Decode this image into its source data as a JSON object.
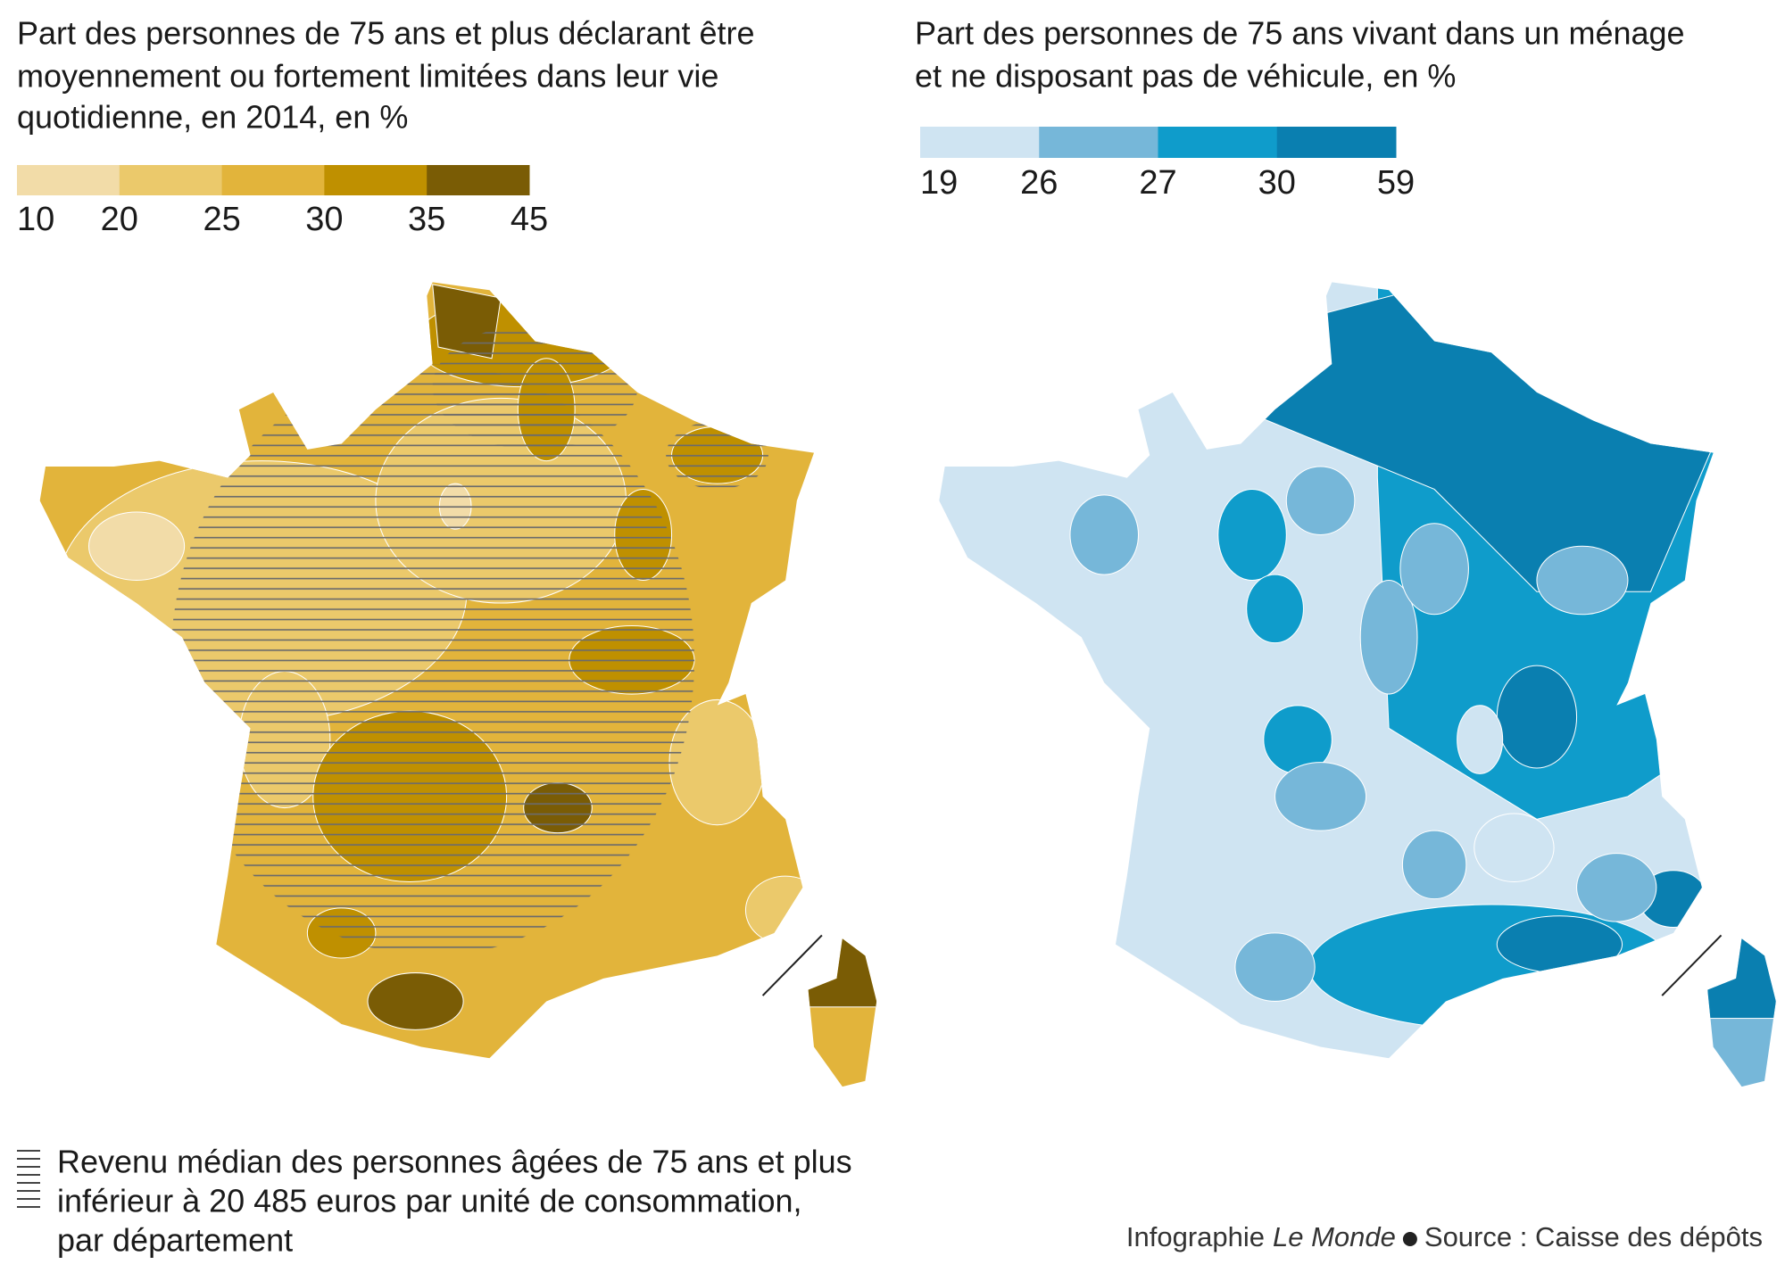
{
  "maps": [
    {
      "title_lines": [
        "Part des personnes de 75 ans et plus déclarant être",
        "moyennement ou fortement limitées dans leur vie",
        "quotidienne, en 2014, en %"
      ],
      "legend": {
        "breaks": [
          10,
          20,
          25,
          30,
          35,
          45
        ],
        "colors": [
          "#f2dca8",
          "#ebc96b",
          "#e2b43b",
          "#bf9000",
          "#7a5c05"
        ]
      }
    },
    {
      "title_lines": [
        "Part des personnes de 75 ans vivant dans un ménage",
        "et ne disposant pas de véhicule, en %"
      ],
      "legend": {
        "breaks": [
          19,
          26,
          27,
          30,
          59
        ],
        "colors": [
          "#cfe4f2",
          "#76b7d9",
          "#0f9ccb",
          "#0a7fb0"
        ]
      }
    }
  ],
  "hatch_note_lines": [
    "Revenu médian des personnes âgées de 75 ans et plus",
    "inférieur à 20 485 euros par unité de consommation,",
    "par département"
  ],
  "credit": {
    "prefix": "Infographie",
    "publication": "Le Monde",
    "source": "Source : Caisse des dépôts"
  }
}
